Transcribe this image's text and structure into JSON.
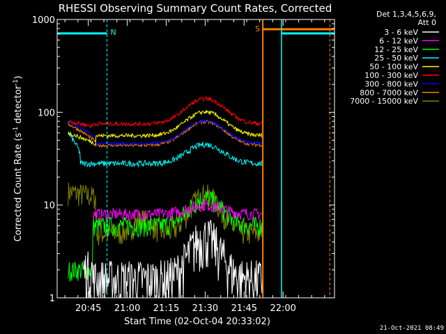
{
  "chart_data": {
    "type": "line",
    "title": "RHESSI Observing Summary Count Rates, Corrected",
    "xlabel": "Start Time (02-Oct-04 20:33:02)",
    "ylabel": "Corrected Count Rate (s",
    "ylabel_sup1": "-1",
    "ylabel_mid": " detector",
    "ylabel_sup2": "-1",
    "ylabel_end": ")",
    "yscale": "log",
    "xlim_minutes": [
      20.55,
      22.33
    ],
    "x_tick_labels": [
      "20:45",
      "21:00",
      "21:15",
      "21:30",
      "21:45",
      "22:00"
    ],
    "x_tick_values": [
      20.75,
      21.0,
      21.25,
      21.5,
      21.75,
      22.0
    ],
    "ylim": [
      1,
      1000
    ],
    "y_tick_labels": [
      "1",
      "10",
      "100",
      "1000"
    ],
    "legend_header": [
      "Det 1,3,4,5,6,9,",
      "Att 0"
    ],
    "series": [
      {
        "name": "3 - 6 keV",
        "color": "#ffffff"
      },
      {
        "name": "6 - 12 keV",
        "color": "#ff00ff"
      },
      {
        "name": "12 - 25 keV",
        "color": "#00ff00"
      },
      {
        "name": "25 - 50 keV",
        "color": "#00ffff"
      },
      {
        "name": "50 - 100 keV",
        "color": "#ffff00"
      },
      {
        "name": "100 - 300 keV",
        "color": "#ff0000"
      },
      {
        "name": "300 - 800 keV",
        "color": "#0000ff"
      },
      {
        "name": "800 - 7000 keV",
        "color": "#ff8000"
      },
      {
        "name": "7000 - 15000 keV",
        "color": "#808000"
      }
    ],
    "annotations": [
      {
        "text": "N",
        "color": "#00ffff"
      },
      {
        "text": "S",
        "color": "#ff8000"
      }
    ],
    "timestamp": "21-Oct-2021 08:49"
  }
}
